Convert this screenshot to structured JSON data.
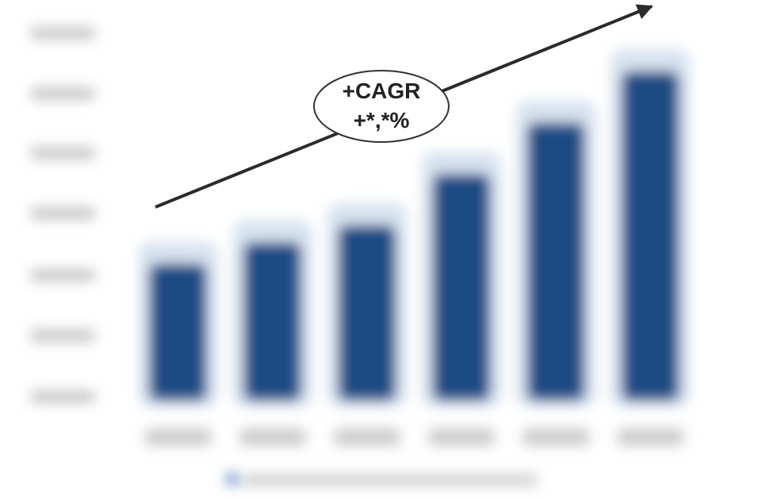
{
  "chart_data": {
    "type": "bar",
    "title": "",
    "xlabel": "",
    "ylabel": "",
    "categories": [
      "",
      "",
      "",
      "",
      "",
      ""
    ],
    "values": [
      1.6,
      1.85,
      2.05,
      2.65,
      3.25,
      3.85
    ],
    "ylim": [
      0,
      4.5
    ],
    "y_ticks": [
      "",
      "",
      "",
      "",
      "",
      "",
      ""
    ],
    "grid": false,
    "legend_position": "bottom",
    "series": [
      {
        "values": [
          1.6,
          1.85,
          2.05,
          2.65,
          3.25,
          3.85
        ]
      }
    ],
    "annotation": {
      "line1": "+CAGR",
      "line2": "+*,*%"
    },
    "colors": {
      "bar": "#1a4c84",
      "bar_halo": "#c9d8ea",
      "axis_text": "#9a9a9a",
      "legend_swatch": "#5b86c4",
      "arrow": "#2b2b2b",
      "ellipse_fill": "#ffffff",
      "ellipse_stroke": "#333333"
    }
  }
}
